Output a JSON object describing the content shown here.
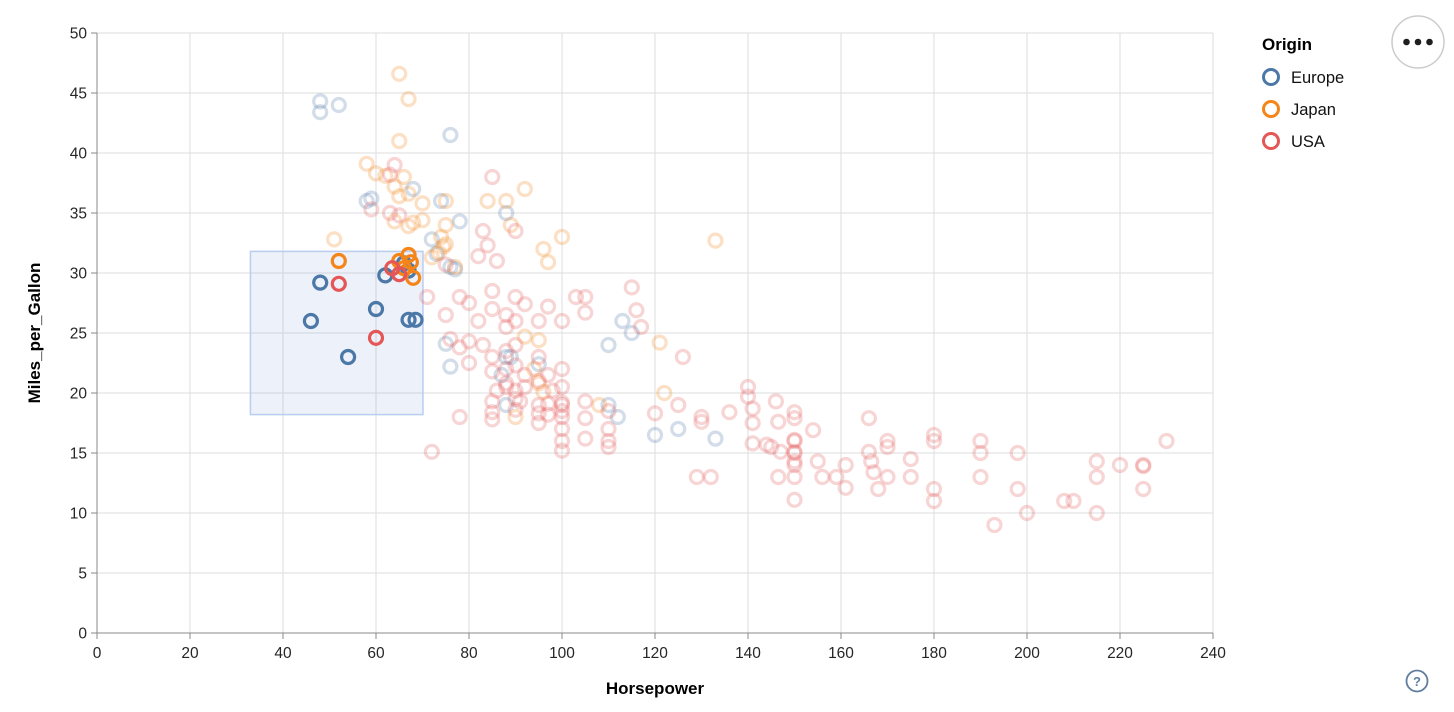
{
  "chart_data": {
    "type": "scatter",
    "title": "",
    "xlabel": "Horsepower",
    "ylabel": "Miles_per_Gallon",
    "xlim": [
      0,
      240
    ],
    "ylim": [
      0,
      50
    ],
    "x_ticks": [
      0,
      20,
      40,
      60,
      80,
      100,
      120,
      140,
      160,
      180,
      200,
      220,
      240
    ],
    "y_ticks": [
      0,
      5,
      10,
      15,
      20,
      25,
      30,
      35,
      40,
      45,
      50
    ],
    "grid": true,
    "legend": {
      "title": "Origin",
      "position": "top-right",
      "entries": [
        {
          "label": "Europe",
          "color": "#4c78a8"
        },
        {
          "label": "Japan",
          "color": "#f58518"
        },
        {
          "label": "USA",
          "color": "#e45756"
        }
      ]
    },
    "origins": {
      "E": "Europe",
      "J": "Japan",
      "U": "USA"
    },
    "colors": {
      "Europe": "#4c78a8",
      "Japan": "#f58518",
      "USA": "#e45756"
    },
    "unselected_opacity": 0.25,
    "brush": {
      "x": [
        33,
        70.1
      ],
      "y": [
        18.2,
        31.8
      ]
    },
    "points": [
      [
        46,
        26,
        "E",
        1
      ],
      [
        48,
        29.2,
        "E",
        1
      ],
      [
        54,
        23,
        "E",
        1
      ],
      [
        60,
        27,
        "E",
        1
      ],
      [
        62,
        29.8,
        "E",
        1
      ],
      [
        66,
        30.8,
        "E",
        1
      ],
      [
        67,
        30.2,
        "E",
        1
      ],
      [
        67,
        26.1,
        "E",
        1
      ],
      [
        68.5,
        26.1,
        "E",
        1
      ],
      [
        52,
        31,
        "J",
        1
      ],
      [
        65,
        31,
        "J",
        1
      ],
      [
        66,
        30.4,
        "J",
        1
      ],
      [
        67,
        31.5,
        "J",
        1
      ],
      [
        67.5,
        30.9,
        "J",
        1
      ],
      [
        68,
        29.6,
        "J",
        1
      ],
      [
        52,
        29.1,
        "U",
        1
      ],
      [
        60,
        24.6,
        "U",
        1
      ],
      [
        63.5,
        30.4,
        "U",
        1
      ],
      [
        65,
        29.9,
        "U",
        1
      ],
      [
        48,
        44.3,
        "E",
        0
      ],
      [
        52,
        44,
        "E",
        0
      ],
      [
        48,
        43.4,
        "E",
        0
      ],
      [
        76,
        41.5,
        "E",
        0
      ],
      [
        58,
        36,
        "E",
        0
      ],
      [
        59,
        36.2,
        "E",
        0
      ],
      [
        74,
        36,
        "E",
        0
      ],
      [
        68,
        37,
        "E",
        0
      ],
      [
        88,
        35,
        "E",
        0
      ],
      [
        78,
        34.3,
        "E",
        0
      ],
      [
        72,
        32.8,
        "E",
        0
      ],
      [
        73,
        31.6,
        "E",
        0
      ],
      [
        77,
        30.3,
        "E",
        0
      ],
      [
        76,
        30.5,
        "E",
        0
      ],
      [
        113,
        26,
        "E",
        0
      ],
      [
        115,
        25,
        "E",
        0
      ],
      [
        110,
        24,
        "E",
        0
      ],
      [
        75,
        24.1,
        "E",
        0
      ],
      [
        76,
        22.2,
        "E",
        0
      ],
      [
        88,
        23,
        "E",
        0
      ],
      [
        87,
        21.5,
        "E",
        0
      ],
      [
        89,
        23,
        "E",
        0
      ],
      [
        95,
        22.4,
        "E",
        0
      ],
      [
        88,
        19,
        "E",
        0
      ],
      [
        110,
        19,
        "E",
        0
      ],
      [
        112,
        18,
        "E",
        0
      ],
      [
        120,
        16.5,
        "E",
        0
      ],
      [
        125,
        17,
        "E",
        0
      ],
      [
        133,
        16.2,
        "E",
        0
      ],
      [
        65,
        46.6,
        "J",
        0
      ],
      [
        67,
        44.5,
        "J",
        0
      ],
      [
        65,
        41,
        "J",
        0
      ],
      [
        58,
        39.1,
        "J",
        0
      ],
      [
        60,
        38.3,
        "J",
        0
      ],
      [
        62,
        38.1,
        "J",
        0
      ],
      [
        66,
        38,
        "J",
        0
      ],
      [
        64,
        37.2,
        "J",
        0
      ],
      [
        65,
        36.4,
        "J",
        0
      ],
      [
        67,
        36.6,
        "J",
        0
      ],
      [
        75,
        36,
        "J",
        0
      ],
      [
        84,
        36,
        "J",
        0
      ],
      [
        88,
        36,
        "J",
        0
      ],
      [
        92,
        37,
        "J",
        0
      ],
      [
        89,
        34,
        "J",
        0
      ],
      [
        64,
        34.3,
        "J",
        0
      ],
      [
        67,
        33.9,
        "J",
        0
      ],
      [
        68,
        34.2,
        "J",
        0
      ],
      [
        70,
        34.4,
        "J",
        0
      ],
      [
        70,
        35.8,
        "J",
        0
      ],
      [
        74,
        33,
        "J",
        0
      ],
      [
        75,
        32.4,
        "J",
        0
      ],
      [
        74.5,
        32.2,
        "J",
        0
      ],
      [
        73.5,
        31.7,
        "J",
        0
      ],
      [
        75,
        34,
        "J",
        0
      ],
      [
        96,
        32,
        "J",
        0
      ],
      [
        100,
        33,
        "J",
        0
      ],
      [
        133,
        32.7,
        "J",
        0
      ],
      [
        72,
        31.3,
        "J",
        0
      ],
      [
        77,
        30.5,
        "J",
        0
      ],
      [
        51,
        32.8,
        "J",
        0
      ],
      [
        97,
        30.9,
        "J",
        0
      ],
      [
        92,
        24.7,
        "J",
        0
      ],
      [
        95,
        24.4,
        "J",
        0
      ],
      [
        94,
        22,
        "J",
        0
      ],
      [
        95,
        20.8,
        "J",
        0
      ],
      [
        96,
        20.1,
        "J",
        0
      ],
      [
        90,
        18,
        "J",
        0
      ],
      [
        108,
        19,
        "J",
        0
      ],
      [
        122,
        20,
        "J",
        0
      ],
      [
        121,
        24.2,
        "J",
        0
      ],
      [
        64,
        39,
        "U",
        0
      ],
      [
        63,
        38.2,
        "U",
        0
      ],
      [
        85,
        38,
        "U",
        0
      ],
      [
        59,
        35.3,
        "U",
        0
      ],
      [
        63,
        35,
        "U",
        0
      ],
      [
        65,
        34.8,
        "U",
        0
      ],
      [
        83,
        33.5,
        "U",
        0
      ],
      [
        84,
        32.3,
        "U",
        0
      ],
      [
        82,
        31.4,
        "U",
        0
      ],
      [
        86,
        31,
        "U",
        0
      ],
      [
        90,
        33.5,
        "U",
        0
      ],
      [
        75,
        30.7,
        "U",
        0
      ],
      [
        71,
        28,
        "U",
        0
      ],
      [
        75,
        26.5,
        "U",
        0
      ],
      [
        78,
        28,
        "U",
        0
      ],
      [
        80,
        27.5,
        "U",
        0
      ],
      [
        82,
        26,
        "U",
        0
      ],
      [
        85,
        28.5,
        "U",
        0
      ],
      [
        85,
        27,
        "U",
        0
      ],
      [
        88,
        26.5,
        "U",
        0
      ],
      [
        88,
        25.5,
        "U",
        0
      ],
      [
        90,
        28,
        "U",
        0
      ],
      [
        90,
        26,
        "U",
        0
      ],
      [
        92,
        27.4,
        "U",
        0
      ],
      [
        95,
        26,
        "U",
        0
      ],
      [
        97,
        27.2,
        "U",
        0
      ],
      [
        100,
        26,
        "U",
        0
      ],
      [
        103,
        28,
        "U",
        0
      ],
      [
        105,
        28,
        "U",
        0
      ],
      [
        105,
        26.7,
        "U",
        0
      ],
      [
        115,
        28.8,
        "U",
        0
      ],
      [
        116,
        26.9,
        "U",
        0
      ],
      [
        117,
        25.5,
        "U",
        0
      ],
      [
        126,
        23,
        "U",
        0
      ],
      [
        76,
        24.5,
        "U",
        0
      ],
      [
        78,
        23.8,
        "U",
        0
      ],
      [
        80,
        24.3,
        "U",
        0
      ],
      [
        80,
        22.5,
        "U",
        0
      ],
      [
        83,
        24,
        "U",
        0
      ],
      [
        85,
        23,
        "U",
        0
      ],
      [
        85,
        21.8,
        "U",
        0
      ],
      [
        88,
        23.5,
        "U",
        0
      ],
      [
        88,
        22,
        "U",
        0
      ],
      [
        88,
        20.8,
        "U",
        0
      ],
      [
        90,
        24,
        "U",
        0
      ],
      [
        90,
        22.3,
        "U",
        0
      ],
      [
        92,
        21.5,
        "U",
        0
      ],
      [
        95,
        23,
        "U",
        0
      ],
      [
        95,
        21,
        "U",
        0
      ],
      [
        97,
        21.5,
        "U",
        0
      ],
      [
        98,
        20.2,
        "U",
        0
      ],
      [
        100,
        22,
        "U",
        0
      ],
      [
        100,
        20.5,
        "U",
        0
      ],
      [
        86,
        20.2,
        "U",
        0
      ],
      [
        88,
        20.5,
        "U",
        0
      ],
      [
        90,
        20.2,
        "U",
        0
      ],
      [
        92,
        20.5,
        "U",
        0
      ],
      [
        78,
        18,
        "U",
        0
      ],
      [
        85,
        19.3,
        "U",
        0
      ],
      [
        85,
        18.4,
        "U",
        0
      ],
      [
        85,
        17.8,
        "U",
        0
      ],
      [
        90,
        19.5,
        "U",
        0
      ],
      [
        90,
        18.6,
        "U",
        0
      ],
      [
        91,
        19.3,
        "U",
        0
      ],
      [
        95,
        19,
        "U",
        0
      ],
      [
        95,
        18.3,
        "U",
        0
      ],
      [
        95,
        17.5,
        "U",
        0
      ],
      [
        97,
        18.2,
        "U",
        0
      ],
      [
        97,
        19.1,
        "U",
        0
      ],
      [
        100,
        19,
        "U",
        0
      ],
      [
        100,
        19.2,
        "U",
        0
      ],
      [
        100,
        18.5,
        "U",
        0
      ],
      [
        100,
        18,
        "U",
        0
      ],
      [
        105,
        19.3,
        "U",
        0
      ],
      [
        105,
        17.9,
        "U",
        0
      ],
      [
        110,
        18.5,
        "U",
        0
      ],
      [
        100,
        17,
        "U",
        0
      ],
      [
        100,
        16,
        "U",
        0
      ],
      [
        100,
        15.2,
        "U",
        0
      ],
      [
        105,
        16.2,
        "U",
        0
      ],
      [
        110,
        17,
        "U",
        0
      ],
      [
        110,
        16,
        "U",
        0
      ],
      [
        110,
        15.5,
        "U",
        0
      ],
      [
        72,
        15.1,
        "U",
        0
      ],
      [
        125,
        19,
        "U",
        0
      ],
      [
        120,
        18.3,
        "U",
        0
      ],
      [
        129,
        13,
        "U",
        0
      ],
      [
        132,
        13,
        "U",
        0
      ],
      [
        130,
        18,
        "U",
        0
      ],
      [
        130,
        17.6,
        "U",
        0
      ],
      [
        136,
        18.4,
        "U",
        0
      ],
      [
        140,
        20.5,
        "U",
        0
      ],
      [
        140,
        19.7,
        "U",
        0
      ],
      [
        141,
        18.7,
        "U",
        0
      ],
      [
        141,
        17.5,
        "U",
        0
      ],
      [
        141,
        15.8,
        "U",
        0
      ],
      [
        144,
        15.7,
        "U",
        0
      ],
      [
        145,
        15.5,
        "U",
        0
      ],
      [
        146,
        19.3,
        "U",
        0
      ],
      [
        146.5,
        17.6,
        "U",
        0
      ],
      [
        147,
        15.1,
        "U",
        0
      ],
      [
        146.5,
        13,
        "U",
        0
      ],
      [
        150,
        18.4,
        "U",
        0
      ],
      [
        150,
        17.9,
        "U",
        0
      ],
      [
        150,
        16.1,
        "U",
        0
      ],
      [
        150,
        16,
        "U",
        0
      ],
      [
        150,
        15.1,
        "U",
        0
      ],
      [
        150,
        15,
        "U",
        0
      ],
      [
        150,
        14.3,
        "U",
        0
      ],
      [
        150,
        14,
        "U",
        0
      ],
      [
        150,
        13,
        "U",
        0
      ],
      [
        150,
        11.1,
        "U",
        0
      ],
      [
        154,
        16.9,
        "U",
        0
      ],
      [
        155,
        14.3,
        "U",
        0
      ],
      [
        156,
        13,
        "U",
        0
      ],
      [
        159,
        13,
        "U",
        0
      ],
      [
        161,
        14,
        "U",
        0
      ],
      [
        161,
        12.1,
        "U",
        0
      ],
      [
        166,
        17.9,
        "U",
        0
      ],
      [
        166,
        15.1,
        "U",
        0
      ],
      [
        166.5,
        14.3,
        "U",
        0
      ],
      [
        167,
        13.4,
        "U",
        0
      ],
      [
        168,
        12,
        "U",
        0
      ],
      [
        170,
        16,
        "U",
        0
      ],
      [
        170,
        15.5,
        "U",
        0
      ],
      [
        170,
        13,
        "U",
        0
      ],
      [
        175,
        14.5,
        "U",
        0
      ],
      [
        175,
        13,
        "U",
        0
      ],
      [
        180,
        16.5,
        "U",
        0
      ],
      [
        180,
        16,
        "U",
        0
      ],
      [
        180,
        12,
        "U",
        0
      ],
      [
        180,
        11,
        "U",
        0
      ],
      [
        190,
        16,
        "U",
        0
      ],
      [
        190,
        15,
        "U",
        0
      ],
      [
        190,
        13,
        "U",
        0
      ],
      [
        193,
        9,
        "U",
        0
      ],
      [
        198,
        15,
        "U",
        0
      ],
      [
        198,
        12,
        "U",
        0
      ],
      [
        200,
        10,
        "U",
        0
      ],
      [
        208,
        11,
        "U",
        0
      ],
      [
        210,
        11,
        "U",
        0
      ],
      [
        215,
        14.3,
        "U",
        0
      ],
      [
        215,
        13,
        "U",
        0
      ],
      [
        215,
        10,
        "U",
        0
      ],
      [
        220,
        14,
        "U",
        0
      ],
      [
        225,
        14,
        "U",
        0
      ],
      [
        225,
        13.9,
        "U",
        0
      ],
      [
        225,
        12,
        "U",
        0
      ],
      [
        230,
        16,
        "U",
        0
      ]
    ]
  },
  "controls": {
    "menu_icon": "ellipsis-icon",
    "help_label": "?"
  }
}
